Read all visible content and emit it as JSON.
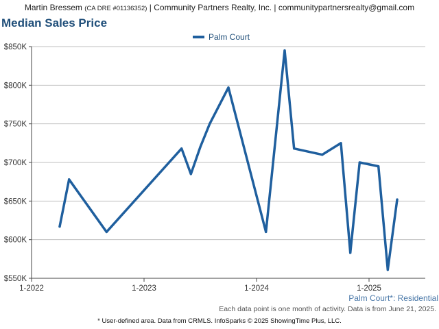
{
  "agent": {
    "name": "Martin Bressem",
    "license": "(CA DRE #01136352)",
    "rest": "| Community Partners Realty, Inc. | communitypartnersrealty@gmail.com"
  },
  "title": "Median Sales Price",
  "series_note": "Palm Court*: Residential",
  "info_note": "Each data point is one month of activity. Data is from June 21, 2025.",
  "footer": "* User-defined area. Data from CRMLS. InfoSparks © 2025 ShowingTime Plus, LLC.",
  "colors": {
    "line": "#1f5f9e",
    "grid": "#bfbfbf",
    "title": "#1f4e79"
  },
  "chart_data": {
    "type": "line",
    "title": "Median Sales Price",
    "legend_position": "top-center",
    "grid": true,
    "x_ticks": [
      "1-2022",
      "1-2023",
      "1-2024",
      "1-2025"
    ],
    "xlim": [
      "2022-01",
      "2025-07"
    ],
    "y_ticks": [
      "$550K",
      "$600K",
      "$650K",
      "$700K",
      "$750K",
      "$800K",
      "$850K"
    ],
    "ylim": [
      550000,
      850000
    ],
    "series": [
      {
        "name": "Palm Court",
        "points": [
          [
            "2022-04",
            617000
          ],
          [
            "2022-05",
            678000
          ],
          [
            "2022-09",
            610000
          ],
          [
            "2023-05",
            718000
          ],
          [
            "2023-06",
            685000
          ],
          [
            "2023-07",
            720000
          ],
          [
            "2023-08",
            750000
          ],
          [
            "2023-10",
            797000
          ],
          [
            "2024-02",
            610000
          ],
          [
            "2024-04",
            845000
          ],
          [
            "2024-05",
            718000
          ],
          [
            "2024-08",
            710000
          ],
          [
            "2024-10",
            725000
          ],
          [
            "2024-11",
            583000
          ],
          [
            "2024-12",
            700000
          ],
          [
            "2025-02",
            695000
          ],
          [
            "2025-03",
            561000
          ],
          [
            "2025-04",
            652000
          ]
        ]
      }
    ]
  }
}
